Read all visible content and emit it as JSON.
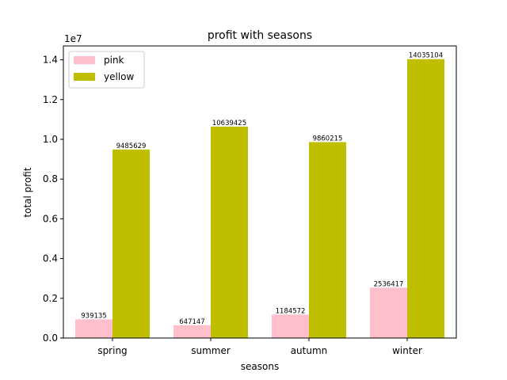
{
  "chart_data": {
    "type": "bar",
    "title": "profit with seasons",
    "xlabel": "seasons",
    "ylabel": "total profit",
    "y_multiplier_label": "1e7",
    "ylim": [
      0,
      14700000
    ],
    "y_ticks": [
      0,
      2000000,
      4000000,
      6000000,
      8000000,
      10000000,
      12000000,
      14000000
    ],
    "y_tick_labels": [
      "0.0",
      "0.2",
      "0.4",
      "0.6",
      "0.8",
      "1.0",
      "1.2",
      "1.4"
    ],
    "categories": [
      "spring",
      "summer",
      "autumn",
      "winter"
    ],
    "series": [
      {
        "name": "pink",
        "color": "#ffc0cb",
        "values": [
          939135,
          647147,
          1184572,
          2536417
        ]
      },
      {
        "name": "yellow",
        "color": "#bfbf00",
        "values": [
          9485629,
          10639425,
          9860215,
          14035104
        ]
      }
    ],
    "legend_position": "top-left",
    "grid": false
  }
}
